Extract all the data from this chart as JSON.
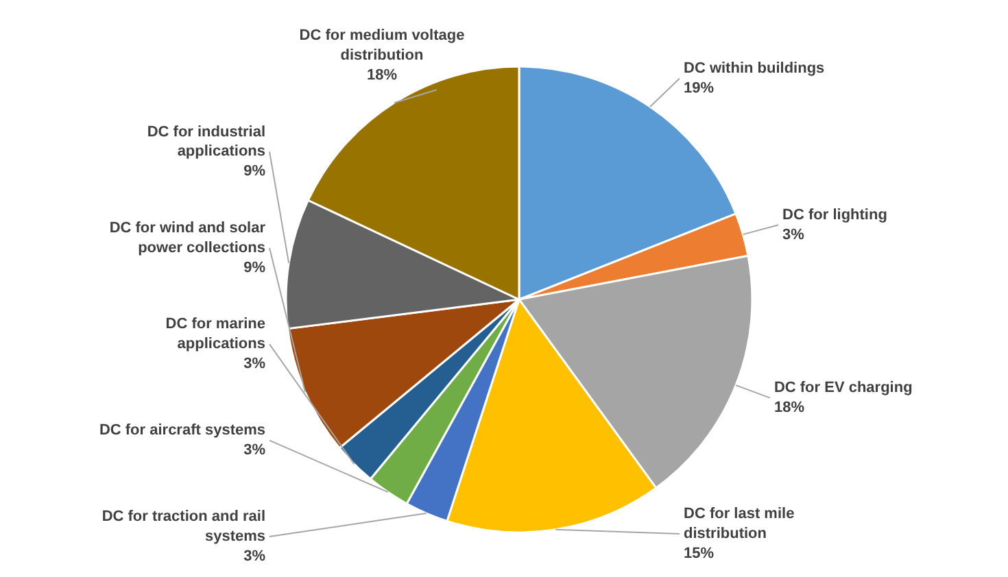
{
  "chart_data": {
    "type": "pie",
    "categories": [
      "DC within buildings",
      "DC for lighting",
      "DC for EV charging",
      "DC for last mile distribution",
      "DC for traction and rail systems",
      "DC for aircraft systems",
      "DC for marine applications",
      "DC for wind and solar power collections",
      "DC for industrial applications",
      "DC for medium voltage distribution"
    ],
    "values": [
      19,
      3,
      18,
      15,
      3,
      3,
      3,
      9,
      9,
      18
    ],
    "value_labels": [
      "19%",
      "3%",
      "18%",
      "15%",
      "3%",
      "3%",
      "3%",
      "9%",
      "9%",
      "18%"
    ],
    "colors": [
      "#5b9bd5",
      "#ed7d31",
      "#a5a5a5",
      "#ffc000",
      "#4472c4",
      "#70ad47",
      "#255e91",
      "#9e480e",
      "#636363",
      "#997300"
    ]
  }
}
